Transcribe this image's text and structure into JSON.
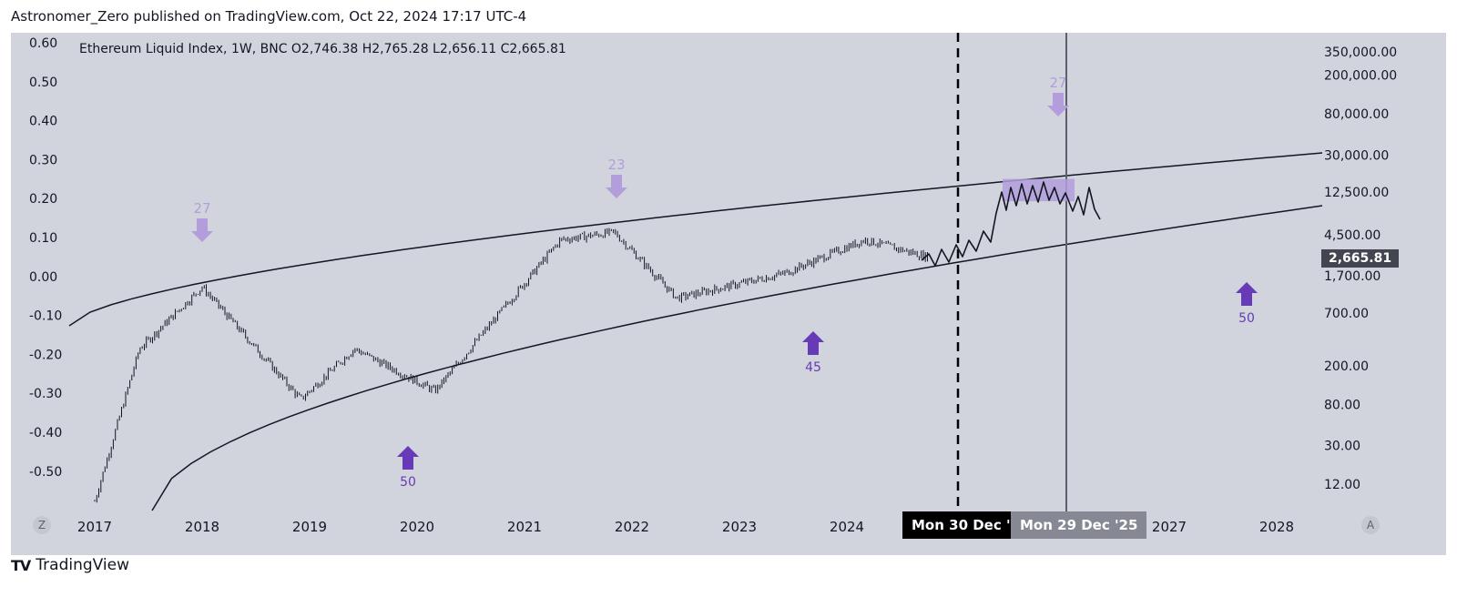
{
  "publisher_line": "Astronomer_Zero published on TradingView.com, Oct 22, 2024 17:17 UTC-4",
  "ohlc_line": "Ethereum Liquid Index, 1W, BNC  O2,746.38  H2,765.28  L2,656.11  C2,665.81",
  "last_price_badge": "2,665.81",
  "date_markers": [
    "Mon 30 Dec '24",
    "Mon 29 Dec '25"
  ],
  "corner_buttons": {
    "left": "Z",
    "right": "A"
  },
  "brand": {
    "logo": "TV",
    "name": "TradingView"
  },
  "colors": {
    "background": "#d1d4dc",
    "candles": "#131722",
    "arrow_light": "#b39ddb",
    "arrow_dark": "#673ab7",
    "zone": "#b39ddb"
  },
  "chart_data": {
    "type": "candlestick",
    "x_axis": {
      "tick_labels": [
        "2017",
        "2018",
        "2019",
        "2020",
        "2021",
        "2022",
        "2023",
        "2024",
        "2027",
        "2028"
      ]
    },
    "left_axis": {
      "tick_labels": [
        "0.60",
        "0.50",
        "0.40",
        "0.30",
        "0.20",
        "0.10",
        "0.00",
        "-0.10",
        "-0.20",
        "-0.30",
        "-0.40",
        "-0.50"
      ]
    },
    "right_axis": {
      "scale": "log",
      "tick_labels": [
        "350,000.00",
        "200,000.00",
        "80,000.00",
        "30,000.00",
        "12,500.00",
        "4,500.00",
        "1,700.00",
        "700.00",
        "200.00",
        "80.00",
        "30.00",
        "12.00"
      ]
    },
    "series": [
      {
        "approx_close_by_year": [
          {
            "x": "2017-01",
            "y": 8
          },
          {
            "x": "2017-06",
            "y": 300
          },
          {
            "x": "2018-01",
            "y": 1300
          },
          {
            "x": "2018-12",
            "y": 90
          },
          {
            "x": "2019-06",
            "y": 300
          },
          {
            "x": "2020-03",
            "y": 110
          },
          {
            "x": "2021-05",
            "y": 4000
          },
          {
            "x": "2021-11",
            "y": 4800
          },
          {
            "x": "2022-06",
            "y": 1000
          },
          {
            "x": "2023-06",
            "y": 1800
          },
          {
            "x": "2024-03",
            "y": 4000
          },
          {
            "x": "2024-10",
            "y": 2665.81
          }
        ]
      }
    ],
    "annotations": [
      {
        "kind": "arrow-down",
        "label": "27",
        "x": "2018-01"
      },
      {
        "kind": "arrow-down",
        "label": "23",
        "x": "2021-11"
      },
      {
        "kind": "arrow-down",
        "label": "27",
        "x": "2025-11"
      },
      {
        "kind": "arrow-up",
        "label": "50",
        "x": "2019-12"
      },
      {
        "kind": "arrow-up",
        "label": "45",
        "x": "2023-09"
      },
      {
        "kind": "arrow-up",
        "label": "50",
        "x": "2027-08"
      }
    ],
    "projection": {
      "kind": "hand-drawn path",
      "x_range": [
        "2024-10",
        "2026-03"
      ]
    },
    "target_zone": {
      "x_range": [
        "2025-05",
        "2025-11"
      ],
      "y_range": [
        10000,
        17000
      ]
    }
  }
}
